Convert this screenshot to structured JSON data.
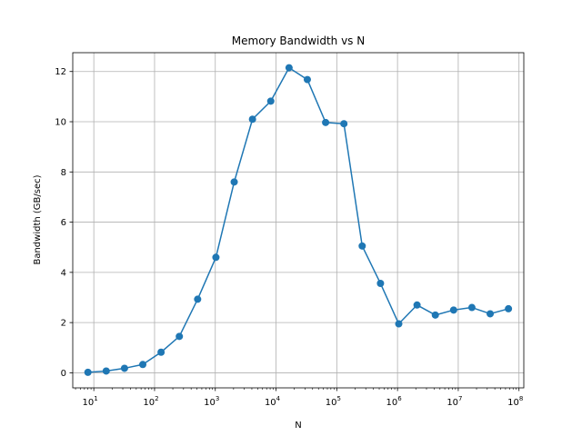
{
  "chart_data": {
    "type": "line",
    "title": "Memory Bandwidth vs N",
    "xlabel": "N",
    "ylabel": "Bandwidth (GB/sec)",
    "xscale": "log",
    "xlim": [
      4.5,
      120000000
    ],
    "ylim": [
      -0.6,
      12.75
    ],
    "grid": true,
    "color": "#1f77b4",
    "marker": "circle",
    "series": [
      {
        "x": [
          8,
          16,
          32,
          64,
          128,
          256,
          512,
          1024,
          2048,
          4096,
          8192,
          16384,
          32768,
          65536,
          131072,
          262144,
          524288,
          1048576,
          2097152,
          4194304,
          8388608,
          16777216,
          33554432,
          67108864
        ],
        "y": [
          0.02,
          0.07,
          0.18,
          0.33,
          0.82,
          1.45,
          2.93,
          4.6,
          7.6,
          10.1,
          10.82,
          12.15,
          11.68,
          9.97,
          9.92,
          5.05,
          3.56,
          1.95,
          2.7,
          2.3,
          2.5,
          2.6,
          2.35,
          2.55
        ]
      }
    ],
    "x_ticks": [
      {
        "value": 10,
        "base": "10",
        "exp": "1"
      },
      {
        "value": 100,
        "base": "10",
        "exp": "2"
      },
      {
        "value": 1000,
        "base": "10",
        "exp": "3"
      },
      {
        "value": 10000,
        "base": "10",
        "exp": "4"
      },
      {
        "value": 100000,
        "base": "10",
        "exp": "5"
      },
      {
        "value": 1000000,
        "base": "10",
        "exp": "6"
      },
      {
        "value": 10000000,
        "base": "10",
        "exp": "7"
      },
      {
        "value": 100000000,
        "base": "10",
        "exp": "8"
      }
    ],
    "y_ticks": [
      {
        "value": 0,
        "label": "0"
      },
      {
        "value": 2,
        "label": "2"
      },
      {
        "value": 4,
        "label": "4"
      },
      {
        "value": 6,
        "label": "6"
      },
      {
        "value": 8,
        "label": "8"
      },
      {
        "value": 10,
        "label": "10"
      },
      {
        "value": 12,
        "label": "12"
      }
    ]
  }
}
